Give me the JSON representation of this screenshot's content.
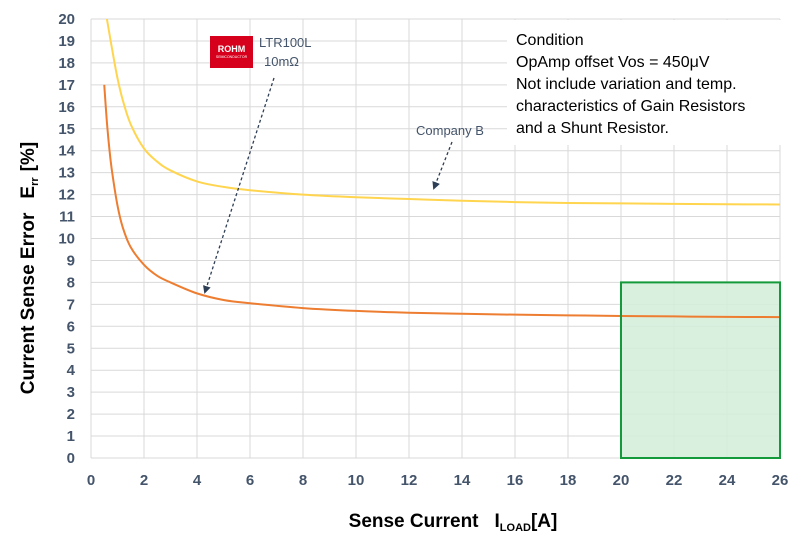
{
  "chart_data": {
    "type": "line",
    "xlabel": "Sense Current",
    "xlabel_symbol": "I",
    "xlabel_subscript": "LOAD",
    "xlabel_unit": "[A]",
    "ylabel": "Current Sense Error",
    "ylabel_symbol": "E",
    "ylabel_subscript": "rr",
    "ylabel_unit": "[%]",
    "xlim": [
      0,
      26
    ],
    "ylim": [
      0,
      20
    ],
    "xticks": [
      0,
      2,
      4,
      6,
      8,
      10,
      12,
      14,
      16,
      18,
      20,
      22,
      24,
      26
    ],
    "yticks": [
      0,
      1,
      2,
      3,
      4,
      5,
      6,
      7,
      8,
      9,
      10,
      11,
      12,
      13,
      14,
      15,
      16,
      17,
      18,
      19,
      20
    ],
    "grid": true,
    "series": [
      {
        "name": "LTR100L 10mΩ",
        "color": "#ed7d31",
        "x": [
          0.5,
          0.6,
          0.7,
          0.8,
          1,
          1.2,
          1.5,
          2,
          2.5,
          3,
          4,
          5,
          6,
          8,
          10,
          12,
          14,
          16,
          18,
          20,
          22,
          24,
          26
        ],
        "y": [
          17,
          15.3,
          14,
          13,
          11.5,
          10.5,
          9.6,
          8.8,
          8.3,
          8.0,
          7.5,
          7.2,
          7.05,
          6.83,
          6.7,
          6.62,
          6.57,
          6.53,
          6.5,
          6.47,
          6.45,
          6.43,
          6.42
        ]
      },
      {
        "name": "Company B",
        "color": "#ffd54f",
        "x": [
          0.6,
          0.8,
          1,
          1.2,
          1.5,
          2,
          2.5,
          3,
          4,
          5,
          6,
          8,
          10,
          12,
          14,
          16,
          18,
          20,
          22,
          24,
          26
        ],
        "y": [
          20,
          18.6,
          17.3,
          16.3,
          15.2,
          14.1,
          13.5,
          13.1,
          12.6,
          12.35,
          12.2,
          12.0,
          11.88,
          11.8,
          11.72,
          11.66,
          11.62,
          11.6,
          11.58,
          11.56,
          11.55
        ]
      }
    ],
    "highlight_region": {
      "x": [
        20,
        26
      ],
      "y": [
        0,
        8
      ],
      "fill": "#d4edd9",
      "stroke": "#149a3a"
    },
    "annotations": {
      "condition_lines": [
        "Condition",
        "OpAmp offset Vos = 450μV",
        "Not include variation and temp.",
        "characteristics of Gain Resistors",
        "and a Shunt Resistor."
      ],
      "rohm_line1": "LTR100L",
      "rohm_line2": "10mΩ",
      "company_b": "Company B",
      "logo_text": "ROHM",
      "logo_subtext": "SEMICONDUCTOR",
      "logo_color": "#d7001c"
    }
  }
}
